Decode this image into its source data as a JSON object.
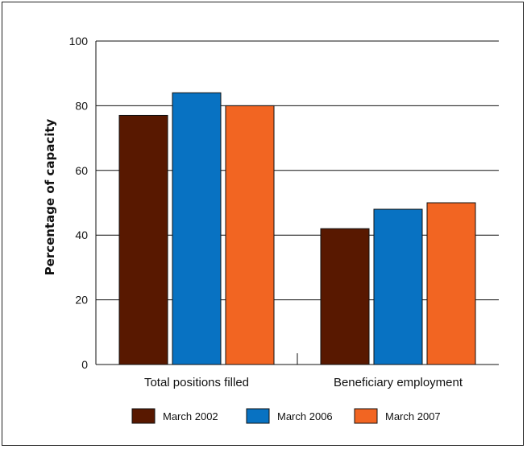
{
  "chart_data": {
    "type": "bar",
    "categories": [
      "Total positions filled",
      "Beneficiary employment"
    ],
    "series": [
      {
        "name": "March 2002",
        "values": [
          77,
          42
        ],
        "color": "#581800"
      },
      {
        "name": "March 2006",
        "values": [
          84,
          48
        ],
        "color": "#0872c2"
      },
      {
        "name": "March 2007",
        "values": [
          80,
          50
        ],
        "color": "#f26522"
      }
    ],
    "ylabel": "Percentage of capacity",
    "xlabel": "",
    "title": "",
    "ylim": [
      0,
      100
    ],
    "yticks": [
      0,
      20,
      40,
      60,
      80,
      100
    ],
    "grid": true,
    "legend_position": "bottom"
  }
}
